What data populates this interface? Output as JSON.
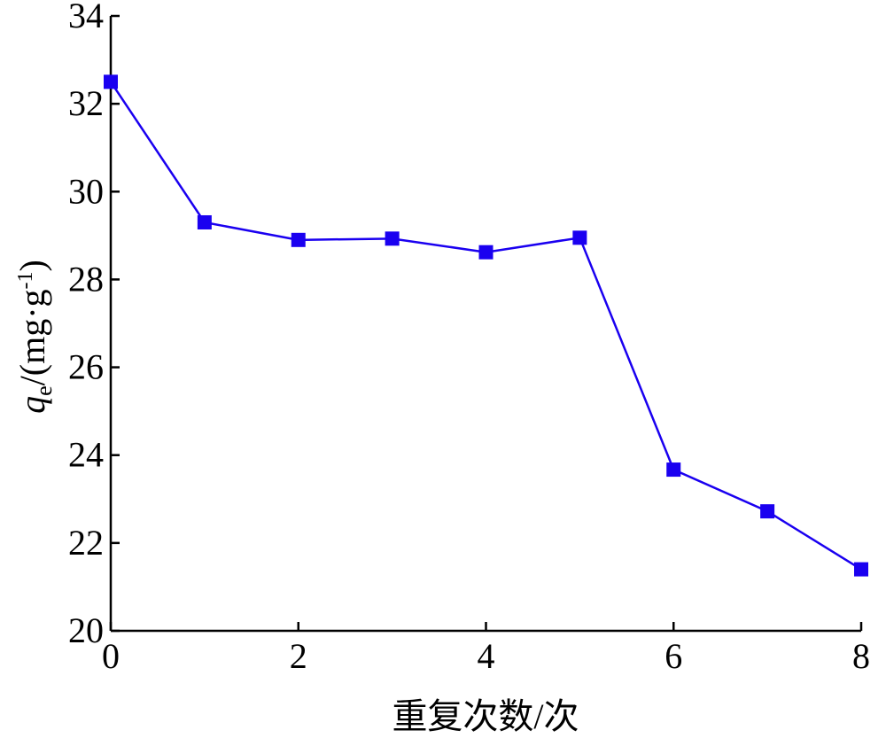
{
  "chart_data": {
    "type": "line",
    "x": [
      0,
      1,
      2,
      3,
      4,
      5,
      6,
      7,
      8
    ],
    "series": [
      {
        "values": [
          32.5,
          29.3,
          28.9,
          28.93,
          28.62,
          28.95,
          23.67,
          22.72,
          21.4
        ],
        "color": "#1a00f0"
      }
    ],
    "xlabel": "重复次数/次",
    "ylabel": {
      "main": "q",
      "sub": "e",
      "rest": "/(mg·g",
      "sup": "-1",
      "close": ")"
    },
    "xlim": [
      0,
      8
    ],
    "ylim": [
      20,
      34
    ],
    "xticks": [
      "0",
      "2",
      "4",
      "6",
      "8"
    ],
    "yticks": [
      "20",
      "22",
      "24",
      "26",
      "28",
      "30",
      "32",
      "34"
    ],
    "grid": false,
    "marker": "square"
  }
}
